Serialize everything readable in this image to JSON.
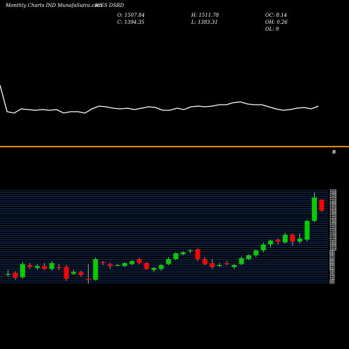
{
  "header": {
    "site": "Monthly Charts IND MunafaSutra.com",
    "symbol": "ICES DSRD",
    "open": "O: 1507.84",
    "high": "H: 1511.78",
    "oc": "OC: 8.14",
    "close": "C: 1394.35",
    "low": "L: 1383.31",
    "oh": "OH: 0.26",
    "ol": "OL: 9"
  },
  "colors": {
    "background": "#000000",
    "bull": "#00d000",
    "bear": "#ff0000",
    "line": "#ffffff",
    "separator": "#ff8c00",
    "grid": "#1f4f9a"
  },
  "chart_data": [
    {
      "type": "line",
      "x": [
        1,
        2,
        3,
        4,
        5,
        6,
        7,
        8,
        9,
        10,
        11,
        12,
        13,
        14,
        15,
        16,
        17,
        18,
        19,
        20,
        21,
        22,
        23,
        24,
        25,
        26,
        27,
        28,
        29,
        30,
        31,
        32,
        33,
        34,
        35,
        36,
        37,
        38,
        39,
        40,
        41,
        42,
        43,
        44,
        45,
        46
      ],
      "values": [
        122,
        160,
        162,
        156,
        157,
        158,
        157,
        158,
        157,
        162,
        160,
        160,
        162,
        156,
        152,
        153,
        155,
        156,
        155,
        157,
        155,
        153,
        154,
        158,
        158,
        155,
        157,
        153,
        152,
        153,
        152,
        150,
        150,
        147,
        146,
        149,
        150,
        150,
        153,
        156,
        158,
        157,
        155,
        154,
        156,
        152
      ],
      "ylim": [
        0,
        300
      ]
    },
    {
      "type": "candlestick",
      "marker": "B",
      "candles": [
        {
          "o": 745,
          "h": 790,
          "l": 720,
          "c": 750
        },
        {
          "o": 760,
          "h": 775,
          "l": 690,
          "c": 710
        },
        {
          "o": 715,
          "h": 870,
          "l": 700,
          "c": 850
        },
        {
          "o": 840,
          "h": 860,
          "l": 800,
          "c": 820
        },
        {
          "o": 810,
          "h": 850,
          "l": 790,
          "c": 830
        },
        {
          "o": 830,
          "h": 860,
          "l": 790,
          "c": 800
        },
        {
          "o": 800,
          "h": 880,
          "l": 780,
          "c": 860
        },
        {
          "o": 820,
          "h": 850,
          "l": 790,
          "c": 810
        },
        {
          "o": 820,
          "h": 840,
          "l": 680,
          "c": 700
        },
        {
          "o": 750,
          "h": 790,
          "l": 740,
          "c": 770
        },
        {
          "o": 770,
          "h": 780,
          "l": 720,
          "c": 740
        },
        {
          "o": 700,
          "h": 850,
          "l": 650,
          "c": 690
        },
        {
          "o": 690,
          "h": 920,
          "l": 680,
          "c": 900
        },
        {
          "o": 870,
          "h": 880,
          "l": 840,
          "c": 860
        },
        {
          "o": 850,
          "h": 860,
          "l": 800,
          "c": 830
        },
        {
          "o": 840,
          "h": 850,
          "l": 830,
          "c": 840
        },
        {
          "o": 830,
          "h": 870,
          "l": 820,
          "c": 860
        },
        {
          "o": 850,
          "h": 890,
          "l": 840,
          "c": 880
        },
        {
          "o": 900,
          "h": 910,
          "l": 850,
          "c": 860
        },
        {
          "o": 860,
          "h": 870,
          "l": 790,
          "c": 800
        },
        {
          "o": 790,
          "h": 820,
          "l": 770,
          "c": 810
        },
        {
          "o": 800,
          "h": 850,
          "l": 780,
          "c": 840
        },
        {
          "o": 850,
          "h": 920,
          "l": 840,
          "c": 900
        },
        {
          "o": 900,
          "h": 970,
          "l": 890,
          "c": 960
        },
        {
          "o": 950,
          "h": 980,
          "l": 940,
          "c": 970
        },
        {
          "o": 980,
          "h": 1000,
          "l": 960,
          "c": 990
        },
        {
          "o": 1000,
          "h": 1010,
          "l": 880,
          "c": 900
        },
        {
          "o": 900,
          "h": 920,
          "l": 840,
          "c": 850
        },
        {
          "o": 860,
          "h": 900,
          "l": 800,
          "c": 820
        },
        {
          "o": 830,
          "h": 860,
          "l": 820,
          "c": 840
        },
        {
          "o": 860,
          "h": 880,
          "l": 840,
          "c": 850
        },
        {
          "o": 820,
          "h": 850,
          "l": 800,
          "c": 840
        },
        {
          "o": 850,
          "h": 930,
          "l": 840,
          "c": 910
        },
        {
          "o": 900,
          "h": 950,
          "l": 890,
          "c": 940
        },
        {
          "o": 940,
          "h": 1000,
          "l": 920,
          "c": 990
        },
        {
          "o": 990,
          "h": 1070,
          "l": 970,
          "c": 1050
        },
        {
          "o": 1050,
          "h": 1100,
          "l": 1020,
          "c": 1090
        },
        {
          "o": 1100,
          "h": 1110,
          "l": 1050,
          "c": 1080
        },
        {
          "o": 1070,
          "h": 1170,
          "l": 1060,
          "c": 1150
        },
        {
          "o": 1150,
          "h": 1160,
          "l": 1040,
          "c": 1080
        },
        {
          "o": 1080,
          "h": 1160,
          "l": 1060,
          "c": 1110
        },
        {
          "o": 1100,
          "h": 1300,
          "l": 1080,
          "c": 1290
        },
        {
          "o": 1290,
          "h": 1580,
          "l": 1280,
          "c": 1530
        },
        {
          "o": 1507.84,
          "h": 1511.78,
          "l": 1383.31,
          "c": 1394.35
        }
      ],
      "ylim": [
        660,
        1600
      ]
    }
  ]
}
